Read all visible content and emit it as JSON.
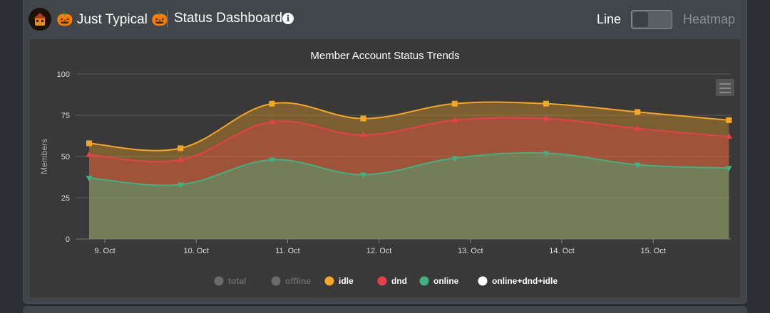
{
  "header": {
    "server_name": "🎃 Just Typical 🎃",
    "page_title": "Status Dashboard",
    "toggle_left": "Line",
    "toggle_right": "Heatmap"
  },
  "chart_data": {
    "type": "area",
    "title": "Member Account Status Trends",
    "ylabel": "Members",
    "xlabel": "",
    "ylim": [
      0,
      100
    ],
    "yticks": [
      0,
      25,
      50,
      75,
      100
    ],
    "categories": [
      "9. Oct",
      "10. Oct",
      "11. Oct",
      "12. Oct",
      "13. Oct",
      "14. Oct",
      "15. Oct",
      ""
    ],
    "x_tick_labels": [
      "9. Oct",
      "10. Oct",
      "11. Oct",
      "12. Oct",
      "13. Oct",
      "14. Oct",
      "15. Oct"
    ],
    "legend_position": "bottom",
    "series": [
      {
        "name": "idle",
        "color": "#f5a623",
        "marker": "square",
        "values": [
          58,
          55,
          82,
          73,
          82,
          82,
          77,
          72
        ],
        "stacked_top": true
      },
      {
        "name": "dnd",
        "color": "#e8404a",
        "marker": "triangle",
        "values": [
          51,
          48,
          71,
          63,
          72,
          73,
          67,
          62
        ]
      },
      {
        "name": "online",
        "color": "#3fb27f",
        "marker": "triangle-down",
        "values": [
          37,
          33,
          48,
          39,
          49,
          52,
          45,
          43
        ]
      }
    ],
    "legend": [
      {
        "name": "total",
        "color": "#7a7a7a",
        "active": false
      },
      {
        "name": "offline",
        "color": "#7a7a7a",
        "active": false
      },
      {
        "name": "idle",
        "color": "#f5a623",
        "active": true
      },
      {
        "name": "dnd",
        "color": "#e8404a",
        "active": true
      },
      {
        "name": "online",
        "color": "#3fb27f",
        "active": true
      },
      {
        "name": "online+dnd+idle",
        "color": "#ffffff",
        "active": true
      }
    ]
  }
}
